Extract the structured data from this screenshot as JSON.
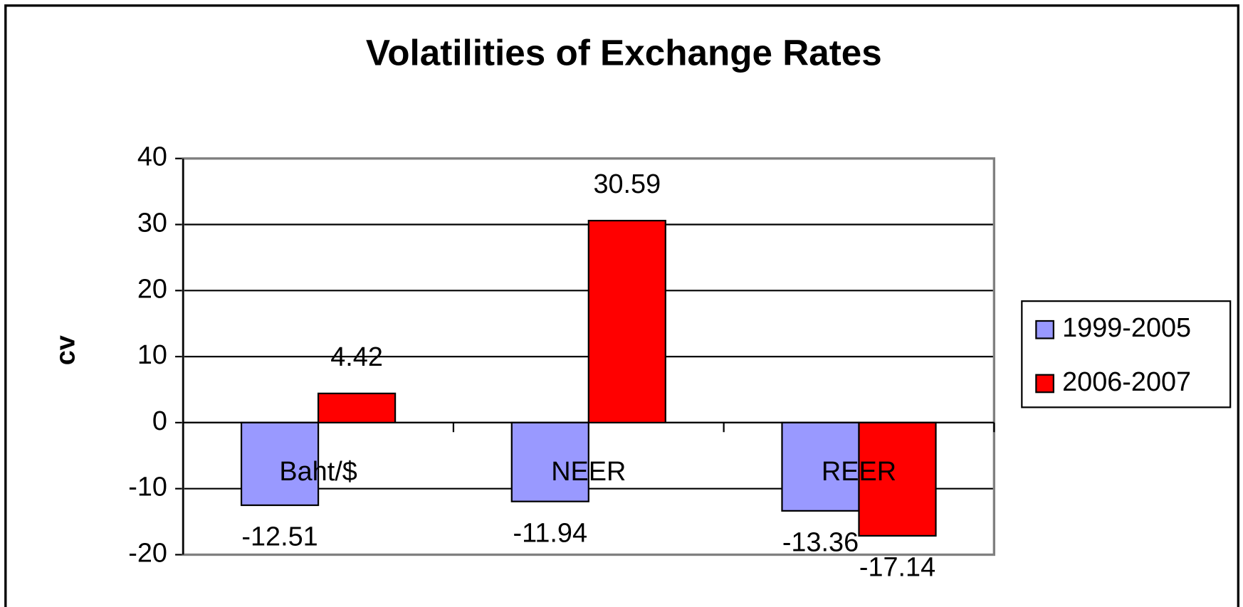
{
  "chart_data": {
    "type": "bar",
    "title": "Volatilities of Exchange Rates",
    "y_label": "cv",
    "categories": [
      "Baht/$",
      "NEER",
      "REER"
    ],
    "series": [
      {
        "name": "1999-2005",
        "color": "#9999ff",
        "values": [
          -12.51,
          -11.94,
          -13.36
        ]
      },
      {
        "name": "2006-2007",
        "color": "#ff0000",
        "values": [
          4.42,
          30.59,
          -17.14
        ]
      }
    ],
    "ylim": [
      -20,
      40
    ],
    "yticks": [
      -20,
      -10,
      0,
      10,
      20,
      30,
      40
    ],
    "grid": true,
    "legend": "right"
  }
}
